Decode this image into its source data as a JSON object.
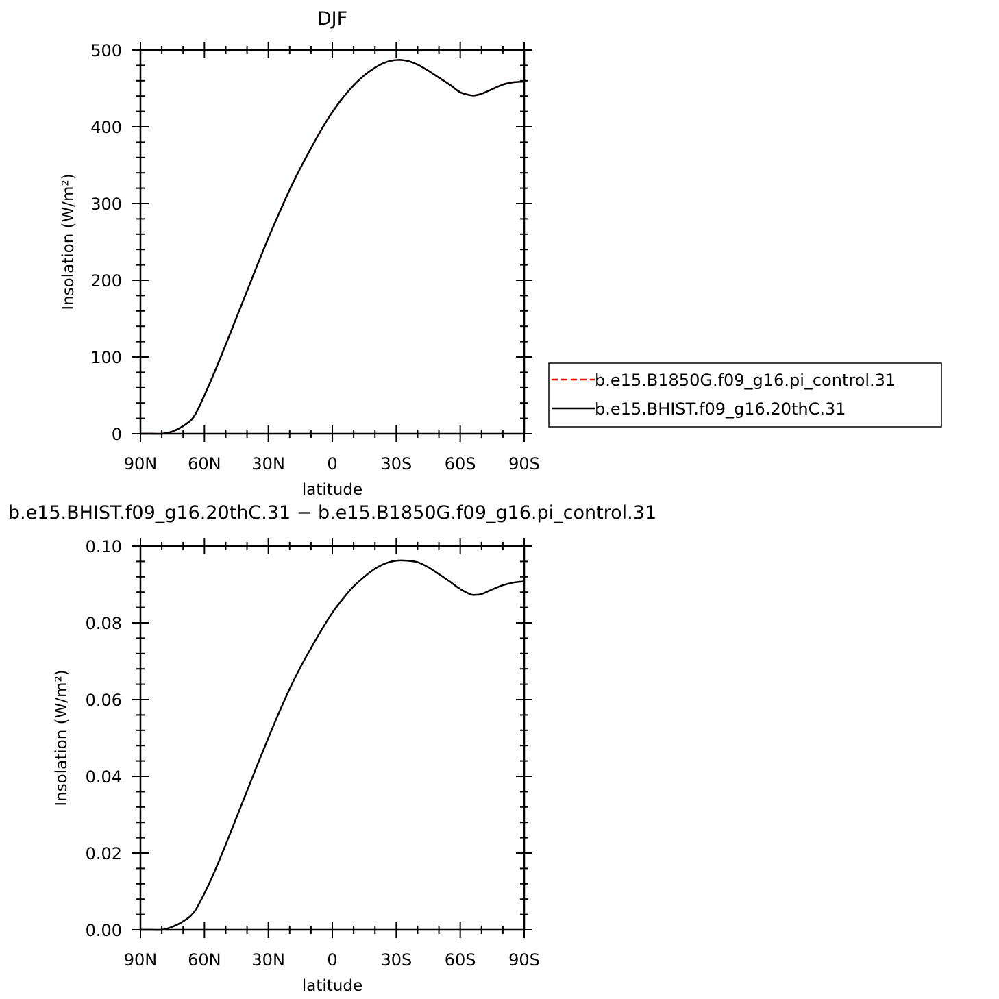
{
  "chart_data": [
    {
      "type": "line",
      "title": "DJF",
      "xlabel": "latitude",
      "ylabel": "Insolation  (W/m²)",
      "x_tick_labels": [
        "90N",
        "60N",
        "30N",
        "0",
        "30S",
        "60S",
        "90S"
      ],
      "y_tick_labels": [
        "0",
        "100",
        "200",
        "300",
        "400",
        "500"
      ],
      "xlim": [
        90,
        -90
      ],
      "ylim": [
        0,
        500
      ],
      "grid": false,
      "legend_position": "right",
      "series": [
        {
          "name": "b.e15.B1850G.f09_g16.pi_control.31",
          "color": "#ff0000",
          "style": "dashed",
          "x": [
            90,
            85,
            80,
            75,
            70,
            65,
            60,
            55,
            50,
            45,
            40,
            35,
            30,
            25,
            20,
            15,
            10,
            5,
            0,
            -5,
            -10,
            -15,
            -20,
            -25,
            -30,
            -35,
            -40,
            -45,
            -50,
            -55,
            -60,
            -65,
            -67,
            -70,
            -75,
            -80,
            -85,
            -90
          ],
          "y": [
            0,
            0,
            0,
            3,
            10,
            22,
            50,
            82,
            116,
            151,
            186,
            221,
            255,
            287,
            318,
            346,
            372,
            397,
            419,
            438,
            454,
            467,
            477,
            484,
            487,
            486,
            481,
            473,
            464,
            455,
            445,
            441,
            441,
            443,
            449,
            455,
            458,
            459
          ]
        },
        {
          "name": "b.e15.BHIST.f09_g16.20thC.31",
          "color": "#000000",
          "style": "solid",
          "x": [
            90,
            85,
            80,
            75,
            70,
            65,
            60,
            55,
            50,
            45,
            40,
            35,
            30,
            25,
            20,
            15,
            10,
            5,
            0,
            -5,
            -10,
            -15,
            -20,
            -25,
            -30,
            -35,
            -40,
            -45,
            -50,
            -55,
            -60,
            -65,
            -67,
            -70,
            -75,
            -80,
            -85,
            -90
          ],
          "y": [
            0,
            0,
            0,
            3,
            10,
            22,
            50,
            82,
            116,
            151,
            186,
            221,
            255,
            287,
            318,
            346,
            372,
            397,
            419,
            438,
            454,
            467,
            477,
            484,
            487,
            486,
            481,
            473,
            464,
            455,
            445,
            441,
            441,
            443,
            449,
            455,
            458,
            459
          ]
        }
      ]
    },
    {
      "type": "line",
      "title": "b.e15.BHIST.f09_g16.20thC.31  −  b.e15.B1850G.f09_g16.pi_control.31",
      "xlabel": "latitude",
      "ylabel": "Insolation  (W/m²)",
      "x_tick_labels": [
        "90N",
        "60N",
        "30N",
        "0",
        "30S",
        "60S",
        "90S"
      ],
      "y_tick_labels": [
        "0.00",
        "0.02",
        "0.04",
        "0.06",
        "0.08",
        "0.10"
      ],
      "xlim": [
        90,
        -90
      ],
      "ylim": [
        0,
        0.1
      ],
      "grid": false,
      "series": [
        {
          "color": "#000000",
          "style": "solid",
          "x": [
            90,
            85,
            80,
            75,
            70,
            65,
            60,
            55,
            50,
            45,
            40,
            35,
            30,
            25,
            20,
            15,
            10,
            5,
            0,
            -5,
            -10,
            -15,
            -20,
            -25,
            -30,
            -35,
            -40,
            -45,
            -50,
            -55,
            -60,
            -65,
            -67,
            -70,
            -75,
            -80,
            -85,
            -90
          ],
          "y": [
            0,
            0,
            0,
            0.0008,
            0.0022,
            0.0045,
            0.0095,
            0.0155,
            0.0222,
            0.0292,
            0.0362,
            0.0432,
            0.05,
            0.0566,
            0.0628,
            0.0684,
            0.0734,
            0.0782,
            0.0826,
            0.0863,
            0.0895,
            0.092,
            0.0941,
            0.0955,
            0.0962,
            0.0962,
            0.0958,
            0.0945,
            0.0927,
            0.0908,
            0.0888,
            0.0874,
            0.0873,
            0.0875,
            0.0887,
            0.0898,
            0.0905,
            0.0908
          ]
        }
      ]
    }
  ]
}
